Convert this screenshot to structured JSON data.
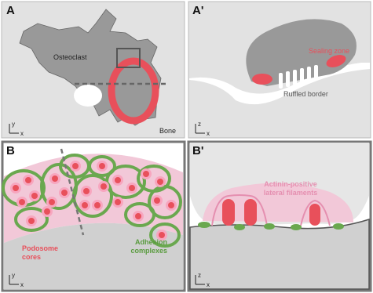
{
  "panels": [
    {
      "label": "A",
      "texts": {
        "cell": "Osteoclast",
        "bone": "Bone"
      },
      "axes": [
        "y",
        "x"
      ]
    },
    {
      "label": "A'",
      "texts": {
        "sealing": "Sealing zone",
        "ruffled": "Ruffled border"
      },
      "axes": [
        "z",
        "x"
      ]
    },
    {
      "label": "B",
      "texts": {
        "cores": [
          "Podosome",
          "cores"
        ],
        "adhesion": [
          "Adhesion",
          "complexes"
        ]
      },
      "axes": [
        "y",
        "x"
      ]
    },
    {
      "label": "B'",
      "texts": {
        "filaments": [
          "Actinin-positive",
          "lateral filaments"
        ]
      },
      "axes": [
        "z",
        "x"
      ]
    }
  ]
}
